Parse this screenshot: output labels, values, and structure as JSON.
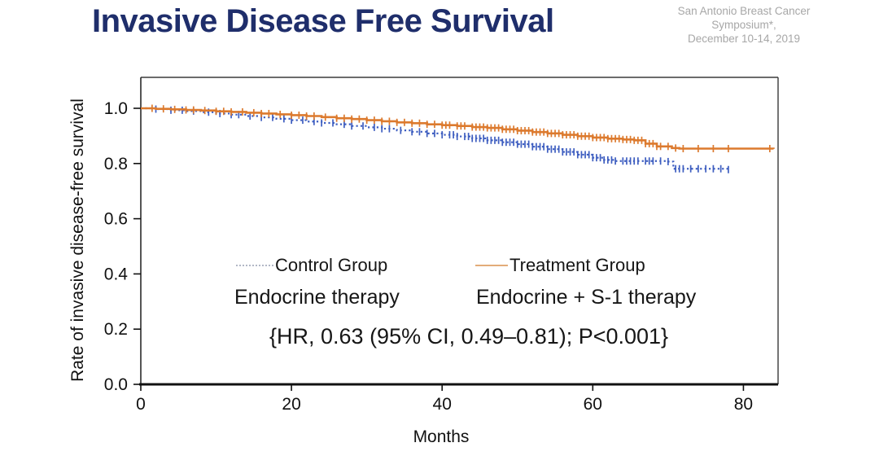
{
  "header": {
    "title": "Invasive Disease Free Survival",
    "symposium": {
      "line1": "San Antonio Breast Cancer Symposium*,",
      "line2": "December 10-14, 2019"
    }
  },
  "colors": {
    "title_navy": "#1f2e6b",
    "symposium_gray": "#a7a7a7",
    "axis_black": "#111111",
    "frame_gray": "#3a3a3a",
    "control_blue": "#3e5ec0",
    "treatment_orange": "#dc7a2e",
    "legend_control_marker": "#b2b8c6",
    "legend_treatment_marker": "#e3ac79"
  },
  "chart_data": {
    "type": "line",
    "subtype": "kaplan-meier-step",
    "title": "Invasive Disease Free Survival",
    "xlabel": "Months",
    "ylabel": "Rate of invasive disease-free survival",
    "xlim": [
      0,
      84.6
    ],
    "ylim": [
      0,
      1.0
    ],
    "grid": false,
    "legend_position": "center",
    "x_ticks": [
      0,
      20,
      40,
      60,
      80
    ],
    "y_tick_labels": [
      "0.0",
      "0.2",
      "0.4",
      "0.6",
      "0.8",
      "1.0"
    ],
    "annotation": "{HR, 0.63 (95% CI, 0.49–0.81); P<0.001}",
    "series": [
      {
        "name": "Control Group",
        "subtitle": "Endocrine therapy",
        "color": "#3e5ec0",
        "line_style": "dotted",
        "points": [
          [
            0,
            1.0
          ],
          [
            2,
            0.997
          ],
          [
            4,
            0.993
          ],
          [
            6,
            0.99
          ],
          [
            8,
            0.986
          ],
          [
            10,
            0.981
          ],
          [
            12,
            0.977
          ],
          [
            14,
            0.972
          ],
          [
            16,
            0.967
          ],
          [
            18,
            0.962
          ],
          [
            20,
            0.957
          ],
          [
            22,
            0.952
          ],
          [
            24,
            0.947
          ],
          [
            26,
            0.942
          ],
          [
            28,
            0.936
          ],
          [
            30,
            0.931
          ],
          [
            32,
            0.926
          ],
          [
            34,
            0.92
          ],
          [
            36,
            0.915
          ],
          [
            38,
            0.909
          ],
          [
            40,
            0.904
          ],
          [
            42,
            0.898
          ],
          [
            44,
            0.891
          ],
          [
            46,
            0.884
          ],
          [
            48,
            0.877
          ],
          [
            50,
            0.87
          ],
          [
            52,
            0.861
          ],
          [
            54,
            0.852
          ],
          [
            56,
            0.842
          ],
          [
            58,
            0.832
          ],
          [
            60,
            0.821
          ],
          [
            61.5,
            0.813
          ],
          [
            63,
            0.809
          ],
          [
            70,
            0.807
          ],
          [
            70.7,
            0.781
          ],
          [
            78,
            0.778
          ]
        ],
        "censor_months": [
          2,
          4,
          5.5,
          7,
          9,
          10.5,
          12,
          13,
          14.5,
          16,
          17.5,
          19,
          20,
          21.5,
          23,
          24,
          25.5,
          27,
          28,
          29.5,
          31,
          32,
          33,
          34.5,
          36,
          37,
          38,
          39,
          40,
          41,
          41.5,
          42,
          43,
          43.5,
          44,
          44.5,
          45,
          45.5,
          46,
          46.5,
          47,
          47.5,
          48,
          48.5,
          49,
          49.5,
          50,
          50.5,
          51,
          51.5,
          52,
          52.5,
          53,
          53.5,
          54,
          54.5,
          55,
          55.5,
          56,
          56.5,
          57,
          57.5,
          58,
          58.5,
          59,
          59.5,
          60,
          60.5,
          61,
          61.5,
          62,
          62.5,
          63,
          64,
          64.5,
          65,
          65.5,
          66,
          67,
          67.5,
          68,
          69,
          70,
          71,
          71.5,
          72,
          73,
          74,
          75,
          76,
          77,
          78
        ]
      },
      {
        "name": "Treatment Group",
        "subtitle": "Endocrine + S-1 therapy",
        "color": "#dc7a2e",
        "line_style": "solid",
        "points": [
          [
            0,
            1.0
          ],
          [
            2,
            0.998
          ],
          [
            4,
            0.996
          ],
          [
            6,
            0.994
          ],
          [
            8,
            0.992
          ],
          [
            10,
            0.989
          ],
          [
            12,
            0.987
          ],
          [
            14,
            0.984
          ],
          [
            16,
            0.981
          ],
          [
            18,
            0.978
          ],
          [
            20,
            0.975
          ],
          [
            22,
            0.972
          ],
          [
            24,
            0.968
          ],
          [
            26,
            0.964
          ],
          [
            28,
            0.961
          ],
          [
            30,
            0.957
          ],
          [
            32,
            0.953
          ],
          [
            34,
            0.949
          ],
          [
            36,
            0.946
          ],
          [
            38,
            0.942
          ],
          [
            40,
            0.939
          ],
          [
            42,
            0.936
          ],
          [
            44,
            0.932
          ],
          [
            46,
            0.929
          ],
          [
            48,
            0.924
          ],
          [
            50,
            0.919
          ],
          [
            52,
            0.914
          ],
          [
            54,
            0.909
          ],
          [
            56,
            0.904
          ],
          [
            58,
            0.899
          ],
          [
            60,
            0.894
          ],
          [
            62,
            0.89
          ],
          [
            64,
            0.887
          ],
          [
            65.5,
            0.884
          ],
          [
            67,
            0.872
          ],
          [
            68.5,
            0.862
          ],
          [
            70.5,
            0.856
          ],
          [
            71.5,
            0.854
          ],
          [
            84,
            0.853
          ]
        ],
        "censor_months": [
          1.5,
          3,
          4.5,
          6,
          7,
          8.5,
          10,
          11,
          12,
          13.5,
          15,
          16,
          17,
          18.5,
          20,
          21,
          22,
          23,
          24.5,
          26,
          27,
          28,
          29,
          30,
          31,
          32,
          33,
          34,
          35,
          36,
          37,
          38,
          39,
          40,
          40.5,
          41,
          42,
          42.5,
          43,
          44,
          44.5,
          45,
          45.5,
          46,
          46.5,
          47,
          47.5,
          48,
          48.5,
          49,
          49.5,
          50,
          50.5,
          51,
          51.5,
          52,
          52.5,
          53,
          53.5,
          54,
          54.5,
          55,
          55.5,
          56,
          56.5,
          57,
          57.5,
          58,
          58.5,
          59,
          59.5,
          60,
          60.5,
          61,
          61.5,
          62,
          62.5,
          63,
          63.5,
          64,
          64.5,
          65,
          65.5,
          66,
          66.5,
          67,
          67.5,
          68,
          68.5,
          69,
          70,
          71,
          72,
          74,
          76,
          78,
          83.5
        ]
      }
    ]
  }
}
